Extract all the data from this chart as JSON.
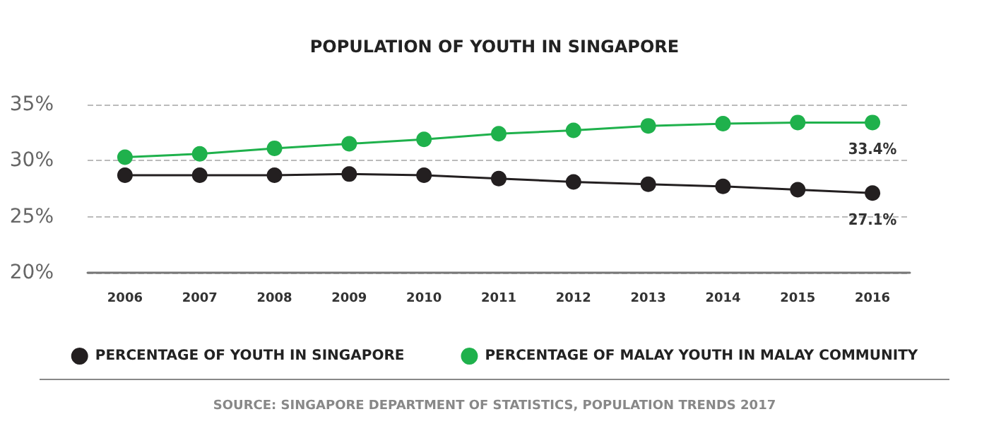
{
  "chart_data": {
    "type": "line",
    "title": "POPULATION OF YOUTH IN SINGAPORE",
    "categories": [
      "2006",
      "2007",
      "2008",
      "2009",
      "2010",
      "2011",
      "2012",
      "2013",
      "2014",
      "2015",
      "2016"
    ],
    "series": [
      {
        "name": "PERCENTAGE OF YOUTH IN SINGAPORE",
        "color": "#231f20",
        "values": [
          28.7,
          28.7,
          28.7,
          28.8,
          28.7,
          28.4,
          28.1,
          27.9,
          27.7,
          27.4,
          27.1
        ],
        "value_labels": [
          null,
          null,
          null,
          null,
          null,
          null,
          null,
          null,
          null,
          null,
          "27.1%"
        ]
      },
      {
        "name": "PERCENTAGE OF MALAY YOUTH IN MALAY COMMUNITY",
        "color": "#1fb14c",
        "values": [
          30.3,
          30.6,
          31.1,
          31.5,
          31.9,
          32.4,
          32.7,
          33.1,
          33.3,
          33.4,
          33.4
        ],
        "value_labels": [
          null,
          null,
          null,
          null,
          null,
          null,
          null,
          null,
          null,
          null,
          "33.4%"
        ]
      }
    ],
    "ylim": [
      20,
      35
    ],
    "yticks": [
      {
        "value": 20,
        "label": "20%"
      },
      {
        "value": 25,
        "label": "25%"
      },
      {
        "value": 30,
        "label": "30%"
      },
      {
        "value": 35,
        "label": "35%"
      }
    ],
    "grid": "y",
    "legend": "bottom",
    "marker": "circle",
    "line_style": "solid",
    "annotations": [
      "SOURCE: SINGAPORE DEPARTMENT OF STATISTICS, POPULATION TRENDS 2017"
    ]
  }
}
